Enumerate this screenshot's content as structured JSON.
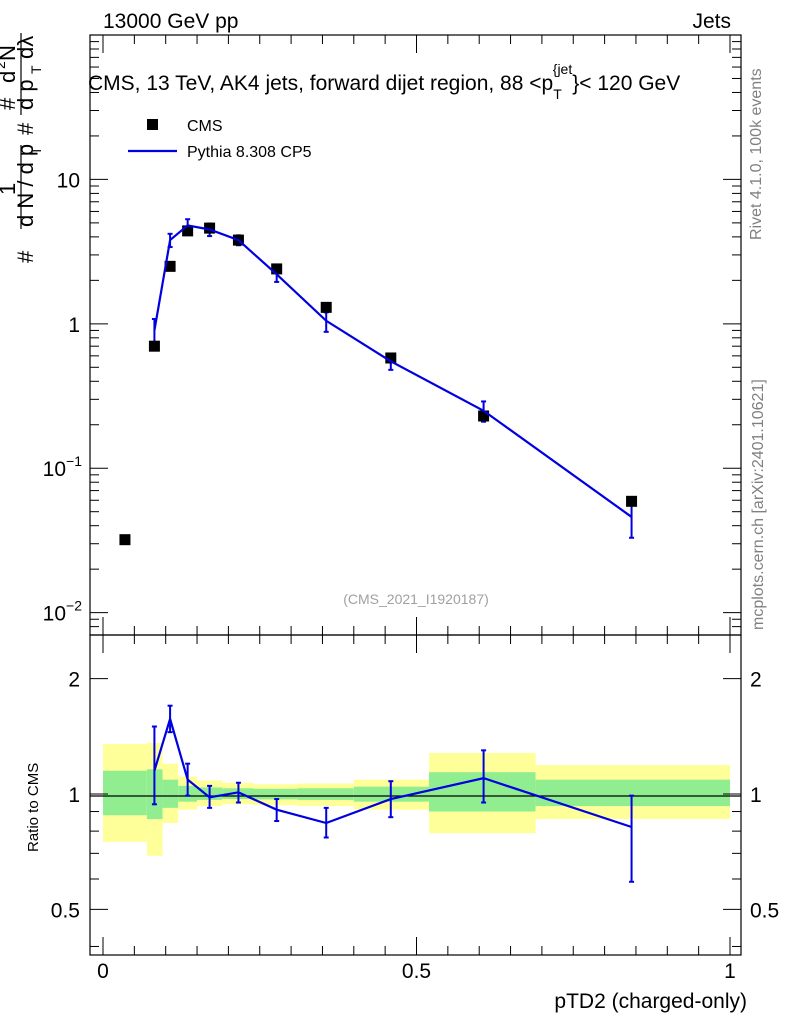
{
  "header": {
    "energy_label": "13000 GeV pp",
    "category_label": "Jets",
    "title_prefix": "CMS, 13 TeV, AK4 jets, forward dijet region, 88 <p",
    "title_sub": "T",
    "title_sup": "{jet",
    "title_suffix": "}< 120 GeV"
  },
  "side_labels": {
    "rivet": "Rivet 4.1.0,  100k events",
    "mcplots": "mcplots.cern.ch [arXiv:2401.10621]"
  },
  "watermark": "(CMS_2021_I1920187)",
  "legend": {
    "data_label": "CMS",
    "mc_label": "Pythia 8.308 CP5"
  },
  "colors": {
    "mc_line": "#0000e0",
    "band_inner": "#90ee90",
    "band_outer": "#ffff99",
    "data_marker": "#000000"
  },
  "chart_data": [
    {
      "type": "scatter",
      "title": "CMS, 13 TeV, AK4 jets, forward dijet region, 88 < pT(jet) < 120 GeV",
      "xlabel": "pTD2 (charged-only)",
      "ylabel": "1/dN/dpT d2N/dpT dlambda",
      "yscale": "log",
      "xlim": [
        -0.02,
        1.02
      ],
      "ylim": [
        0.007,
        100
      ],
      "y_ticks": [
        {
          "value": 10,
          "label": "10"
        },
        {
          "value": 1,
          "label": "1"
        },
        {
          "value": 0.1,
          "label": "10",
          "exp": "−1"
        },
        {
          "value": 0.01,
          "label": "10",
          "exp": "−2"
        }
      ],
      "series": [
        {
          "name": "CMS",
          "kind": "points",
          "x": [
            0.035,
            0.082,
            0.107,
            0.135,
            0.17,
            0.216,
            0.277,
            0.356,
            0.459,
            0.607,
            0.843
          ],
          "y": [
            0.032,
            0.7,
            2.5,
            4.4,
            4.6,
            3.8,
            2.4,
            1.3,
            0.58,
            0.23,
            0.059
          ]
        },
        {
          "name": "Pythia 8.308 CP5",
          "kind": "line",
          "x": [
            0.082,
            0.107,
            0.135,
            0.17,
            0.216,
            0.277,
            0.356,
            0.459,
            0.607,
            0.843
          ],
          "y": [
            0.9,
            3.8,
            4.8,
            4.5,
            3.8,
            2.2,
            1.05,
            0.55,
            0.25,
            0.046
          ],
          "err_lo": [
            0.68,
            3.4,
            4.3,
            4.05,
            3.5,
            1.95,
            0.88,
            0.48,
            0.21,
            0.033
          ],
          "err_hi": [
            1.08,
            4.2,
            5.3,
            4.95,
            4.1,
            2.45,
            1.2,
            0.62,
            0.29,
            0.06
          ]
        }
      ]
    },
    {
      "type": "line",
      "ylabel": "Ratio to CMS",
      "xlabel": "pTD2 (charged-only)",
      "xlim": [
        -0.02,
        1.02
      ],
      "ylim": [
        0.38,
        2.6
      ],
      "yscale": "log",
      "y_ticks": [
        {
          "value": 2,
          "label": "2"
        },
        {
          "value": 1,
          "label": "1"
        },
        {
          "value": 0.5,
          "label": "0.5"
        }
      ],
      "x_ticks": [
        {
          "value": 0,
          "label": "0"
        },
        {
          "value": 0.5,
          "label": "0.5"
        },
        {
          "value": 1,
          "label": "1"
        }
      ],
      "bands": [
        {
          "x0": 0.0,
          "x1": 0.07,
          "outer": [
            0.75,
            1.35
          ],
          "inner": [
            0.88,
            1.15
          ]
        },
        {
          "x0": 0.07,
          "x1": 0.095,
          "outer": [
            0.69,
            1.36
          ],
          "inner": [
            0.86,
            1.16
          ]
        },
        {
          "x0": 0.095,
          "x1": 0.12,
          "outer": [
            0.84,
            1.2
          ],
          "inner": [
            0.92,
            1.09
          ]
        },
        {
          "x0": 0.12,
          "x1": 0.15,
          "outer": [
            0.91,
            1.11
          ],
          "inner": [
            0.955,
            1.05
          ]
        },
        {
          "x0": 0.15,
          "x1": 0.19,
          "outer": [
            0.93,
            1.085
          ],
          "inner": [
            0.965,
            1.04
          ]
        },
        {
          "x0": 0.19,
          "x1": 0.24,
          "outer": [
            0.94,
            1.07
          ],
          "inner": [
            0.97,
            1.035
          ]
        },
        {
          "x0": 0.24,
          "x1": 0.31,
          "outer": [
            0.935,
            1.06
          ],
          "inner": [
            0.968,
            1.032
          ]
        },
        {
          "x0": 0.31,
          "x1": 0.4,
          "outer": [
            0.93,
            1.065
          ],
          "inner": [
            0.965,
            1.035
          ]
        },
        {
          "x0": 0.4,
          "x1": 0.52,
          "outer": [
            0.91,
            1.09
          ],
          "inner": [
            0.955,
            1.045
          ]
        },
        {
          "x0": 0.52,
          "x1": 0.69,
          "outer": [
            0.79,
            1.28
          ],
          "inner": [
            0.9,
            1.14
          ]
        },
        {
          "x0": 0.69,
          "x1": 1.0,
          "outer": [
            0.86,
            1.19
          ],
          "inner": [
            0.93,
            1.09
          ]
        }
      ],
      "series": [
        {
          "name": "Pythia 8.308 CP5 / CMS",
          "x": [
            0.082,
            0.107,
            0.135,
            0.17,
            0.216,
            0.277,
            0.356,
            0.459,
            0.607,
            0.843
          ],
          "y": [
            1.15,
            1.57,
            1.09,
            0.98,
            1.01,
            0.91,
            0.84,
            0.97,
            1.1,
            0.82
          ],
          "err_lo": [
            0.94,
            1.45,
            0.99,
            0.92,
            0.95,
            0.85,
            0.77,
            0.87,
            0.95,
            0.59
          ],
          "err_hi": [
            1.5,
            1.7,
            1.2,
            1.05,
            1.07,
            0.97,
            0.92,
            1.08,
            1.3,
            0.99
          ]
        }
      ]
    }
  ]
}
